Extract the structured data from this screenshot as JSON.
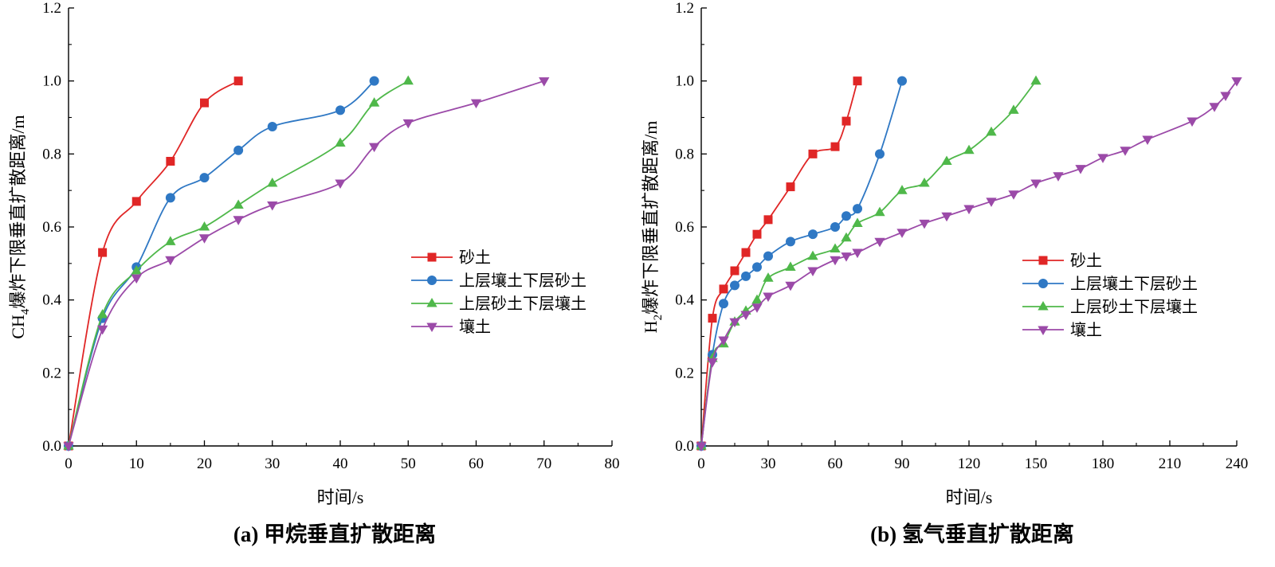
{
  "chart_data": [
    {
      "type": "line",
      "panel": "a",
      "caption": "(a) 甲烷垂直扩散距离",
      "xlabel": "时间/s",
      "ylabel_main": "CH",
      "ylabel_sub": "4",
      "ylabel_rest": "爆炸下限垂直扩散距离/m",
      "xlim": [
        0,
        80
      ],
      "ylim": [
        0,
        1.2
      ],
      "xticks": [
        "0",
        "10",
        "20",
        "30",
        "40",
        "50",
        "60",
        "70",
        "80"
      ],
      "yticks": [
        "0.0",
        "0.2",
        "0.4",
        "0.6",
        "0.8",
        "1.0",
        "1.2"
      ],
      "legend_position": "center-right",
      "series": [
        {
          "name": "砂土",
          "color": "#e02626",
          "marker": "square",
          "x": [
            0,
            5,
            10,
            15,
            20,
            25
          ],
          "y": [
            0,
            0.53,
            0.67,
            0.78,
            0.94,
            1.0
          ]
        },
        {
          "name": "上层壤土下层砂土",
          "color": "#2f78c4",
          "marker": "circle",
          "x": [
            0,
            5,
            10,
            15,
            20,
            25,
            30,
            40,
            45
          ],
          "y": [
            0,
            0.35,
            0.49,
            0.68,
            0.735,
            0.81,
            0.875,
            0.92,
            1.0
          ]
        },
        {
          "name": "上层砂土下层壤土",
          "color": "#4fb84a",
          "marker": "triangle-up",
          "x": [
            0,
            5,
            10,
            15,
            20,
            25,
            30,
            40,
            45,
            50
          ],
          "y": [
            0,
            0.36,
            0.48,
            0.56,
            0.6,
            0.66,
            0.72,
            0.83,
            0.94,
            1.0
          ]
        },
        {
          "name": "壤土",
          "color": "#9b4aa8",
          "marker": "triangle-down",
          "x": [
            0,
            5,
            10,
            15,
            20,
            25,
            30,
            40,
            45,
            50,
            60,
            70
          ],
          "y": [
            0,
            0.32,
            0.46,
            0.51,
            0.57,
            0.62,
            0.66,
            0.72,
            0.82,
            0.885,
            0.94,
            1.0
          ]
        }
      ]
    },
    {
      "type": "line",
      "panel": "b",
      "caption": "(b) 氢气垂直扩散距离",
      "xlabel": "时间/s",
      "ylabel_main": "H",
      "ylabel_sub": "2",
      "ylabel_rest": "爆炸下限垂直扩散距离/m",
      "xlim": [
        0,
        240
      ],
      "ylim": [
        0,
        1.2
      ],
      "xticks": [
        "0",
        "30",
        "60",
        "90",
        "120",
        "150",
        "180",
        "210",
        "240"
      ],
      "yticks": [
        "0.0",
        "0.2",
        "0.4",
        "0.6",
        "0.8",
        "1.0",
        "1.2"
      ],
      "legend_position": "center-right",
      "series": [
        {
          "name": "砂土",
          "color": "#e02626",
          "marker": "square",
          "x": [
            0,
            5,
            10,
            15,
            20,
            25,
            30,
            40,
            50,
            60,
            65,
            70
          ],
          "y": [
            0,
            0.35,
            0.43,
            0.48,
            0.53,
            0.58,
            0.62,
            0.71,
            0.8,
            0.82,
            0.89,
            1.0
          ]
        },
        {
          "name": "上层壤土下层砂土",
          "color": "#2f78c4",
          "marker": "circle",
          "x": [
            0,
            5,
            10,
            15,
            20,
            25,
            30,
            40,
            50,
            60,
            65,
            70,
            80,
            90
          ],
          "y": [
            0,
            0.25,
            0.39,
            0.44,
            0.465,
            0.49,
            0.52,
            0.56,
            0.58,
            0.6,
            0.63,
            0.65,
            0.8,
            1.0
          ]
        },
        {
          "name": "上层砂土下层壤土",
          "color": "#4fb84a",
          "marker": "triangle-up",
          "x": [
            0,
            5,
            10,
            15,
            20,
            25,
            30,
            40,
            50,
            60,
            65,
            70,
            80,
            90,
            100,
            110,
            120,
            130,
            140,
            150
          ],
          "y": [
            0,
            0.24,
            0.28,
            0.34,
            0.37,
            0.4,
            0.46,
            0.49,
            0.52,
            0.54,
            0.57,
            0.61,
            0.64,
            0.7,
            0.72,
            0.78,
            0.81,
            0.86,
            0.92,
            1.0
          ]
        },
        {
          "name": "壤土",
          "color": "#9b4aa8",
          "marker": "triangle-down",
          "x": [
            0,
            5,
            10,
            15,
            20,
            25,
            30,
            40,
            50,
            60,
            65,
            70,
            80,
            90,
            100,
            110,
            120,
            130,
            140,
            150,
            160,
            170,
            180,
            190,
            200,
            220,
            230,
            235,
            240
          ],
          "y": [
            0,
            0.23,
            0.29,
            0.34,
            0.36,
            0.38,
            0.41,
            0.44,
            0.48,
            0.51,
            0.52,
            0.53,
            0.56,
            0.585,
            0.61,
            0.63,
            0.65,
            0.67,
            0.69,
            0.72,
            0.74,
            0.76,
            0.79,
            0.81,
            0.84,
            0.89,
            0.93,
            0.96,
            1.0
          ]
        }
      ]
    }
  ]
}
